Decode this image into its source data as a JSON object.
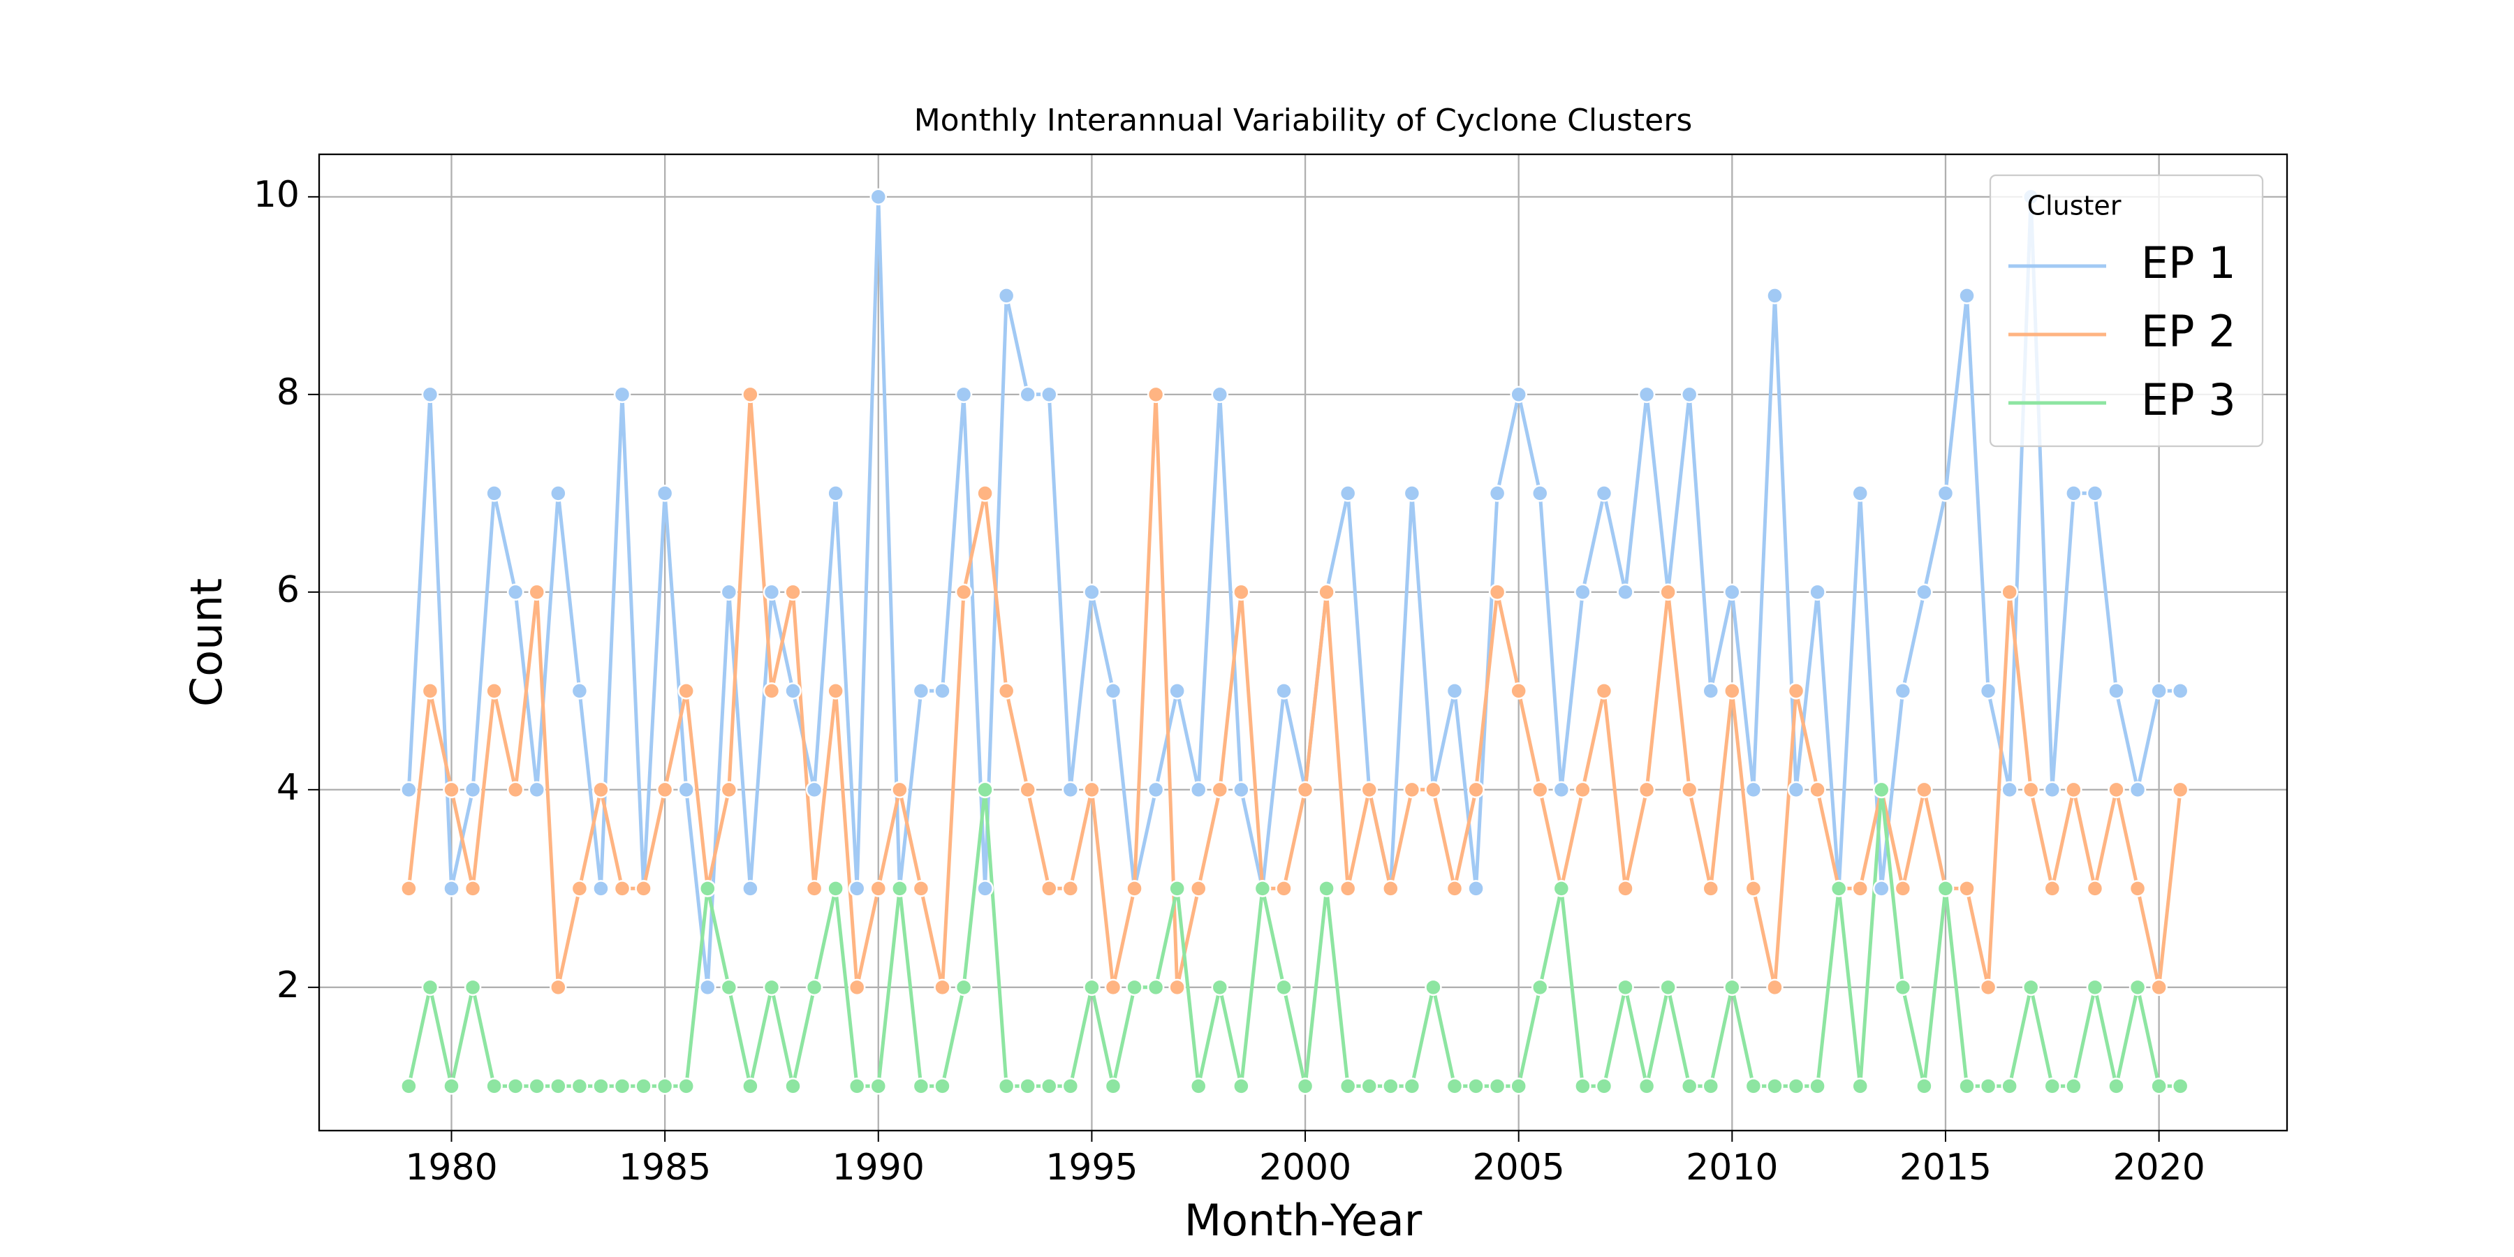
{
  "chart_data": {
    "type": "line",
    "title": "Monthly Interannual Variability of Cyclone Clusters",
    "x_label": "Month-Year",
    "y_label": "Count",
    "legend_title": "Cluster",
    "legend_position": "upper right",
    "grid": true,
    "x": [
      1979,
      1979.5,
      1980,
      1980.5,
      1981,
      1981.5,
      1982,
      1982.5,
      1983,
      1983.5,
      1984,
      1984.5,
      1985,
      1985.5,
      1986,
      1986.5,
      1987,
      1987.5,
      1988,
      1988.5,
      1989,
      1989.5,
      1990,
      1990.5,
      1991,
      1991.5,
      1992,
      1992.5,
      1993,
      1993.5,
      1994,
      1994.5,
      1995,
      1995.5,
      1996,
      1996.5,
      1997,
      1997.5,
      1998,
      1998.5,
      1999,
      1999.5,
      2000,
      2000.5,
      2001,
      2001.5,
      2002,
      2002.5,
      2003,
      2003.5,
      2004,
      2004.5,
      2005,
      2005.5,
      2006,
      2006.5,
      2007,
      2007.5,
      2008,
      2008.5,
      2009,
      2009.5,
      2010,
      2010.5,
      2011,
      2011.5,
      2012,
      2012.5,
      2013,
      2013.5,
      2014,
      2014.5,
      2015,
      2015.5,
      2016,
      2016.5,
      2017,
      2017.5,
      2018,
      2018.5,
      2019,
      2019.5,
      2020,
      2020.5
    ],
    "series": [
      {
        "name": "EP 1",
        "color": "#a1c9f4",
        "values": [
          4,
          8,
          3,
          4,
          7,
          6,
          4,
          7,
          5,
          3,
          8,
          3,
          7,
          4,
          2,
          6,
          3,
          6,
          5,
          4,
          7,
          3,
          10,
          3,
          5,
          5,
          8,
          3,
          9,
          8,
          8,
          4,
          6,
          5,
          3,
          4,
          5,
          4,
          8,
          4,
          3,
          5,
          4,
          6,
          7,
          4,
          3,
          7,
          4,
          5,
          3,
          7,
          8,
          7,
          4,
          6,
          7,
          6,
          8,
          6,
          8,
          5,
          6,
          4,
          9,
          4,
          6,
          3,
          7,
          3,
          5,
          6,
          7,
          9,
          5,
          4,
          10,
          4,
          7,
          7,
          5,
          4,
          5,
          5
        ]
      },
      {
        "name": "EP 2",
        "color": "#ffb482",
        "values": [
          3,
          5,
          4,
          3,
          5,
          4,
          6,
          2,
          3,
          4,
          3,
          3,
          4,
          5,
          3,
          4,
          8,
          5,
          6,
          3,
          5,
          2,
          3,
          4,
          3,
          2,
          6,
          7,
          5,
          4,
          3,
          3,
          4,
          2,
          3,
          8,
          2,
          3,
          4,
          6,
          3,
          3,
          4,
          6,
          3,
          4,
          3,
          4,
          4,
          3,
          4,
          6,
          5,
          4,
          3,
          4,
          5,
          3,
          4,
          6,
          4,
          3,
          5,
          3,
          2,
          5,
          4,
          3,
          3,
          4,
          3,
          4,
          3,
          3,
          2,
          6,
          4,
          3,
          4,
          3,
          4,
          3,
          2,
          4
        ]
      },
      {
        "name": "EP 3",
        "color": "#8de5a1",
        "values": [
          1,
          2,
          1,
          2,
          1,
          1,
          1,
          1,
          1,
          1,
          1,
          1,
          1,
          1,
          3,
          2,
          1,
          2,
          1,
          2,
          3,
          1,
          1,
          3,
          1,
          1,
          2,
          4,
          1,
          1,
          1,
          1,
          2,
          1,
          2,
          2,
          3,
          1,
          2,
          1,
          3,
          2,
          1,
          3,
          1,
          1,
          1,
          1,
          2,
          1,
          1,
          1,
          1,
          2,
          3,
          1,
          1,
          2,
          1,
          2,
          1,
          1,
          2,
          1,
          1,
          1,
          1,
          3,
          1,
          4,
          2,
          1,
          3,
          1,
          1,
          1,
          2,
          1,
          1,
          2,
          1,
          2,
          1,
          1
        ]
      }
    ],
    "xlim": [
      1976.9,
      2023.0
    ],
    "ylim": [
      0.55,
      10.43
    ],
    "xticks": [
      1980,
      1985,
      1990,
      1995,
      2000,
      2005,
      2010,
      2015,
      2020
    ],
    "yticks": [
      2,
      4,
      6,
      8,
      10
    ]
  }
}
